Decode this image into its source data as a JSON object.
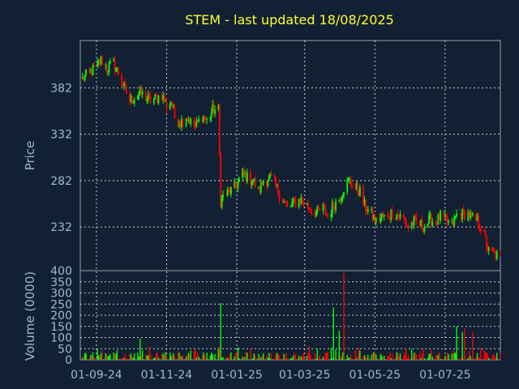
{
  "chart_data": [
    {
      "type": "candlestick",
      "title": "STEM - last updated 18/08/2025",
      "ylabel": "Price",
      "yticks": [
        "232",
        "282",
        "332",
        "382"
      ],
      "ytick_values": [
        232,
        282,
        332,
        382
      ],
      "ylim": [
        185,
        433
      ],
      "xticks": [
        "01-09-24",
        "01-11-24",
        "01-01-25",
        "01-03-25",
        "01-05-25",
        "01-07-25"
      ],
      "x_range": [
        "2024-08-18",
        "2025-08-18"
      ],
      "grid": true,
      "up_color": "#00ff00",
      "down_color": "#ff0000",
      "series": [
        {
          "values": [
            [
              "2024-08-20",
              392
            ],
            [
              "2024-08-26",
              398
            ],
            [
              "2024-09-02",
              405
            ],
            [
              "2024-09-05",
              412
            ],
            [
              "2024-09-10",
              403
            ],
            [
              "2024-09-16",
              408
            ],
            [
              "2024-09-20",
              398
            ],
            [
              "2024-09-25",
              382
            ],
            [
              "2024-09-30",
              368
            ],
            [
              "2024-10-04",
              372
            ],
            [
              "2024-10-08",
              377
            ],
            [
              "2024-10-14",
              372
            ],
            [
              "2024-10-18",
              368
            ],
            [
              "2024-10-23",
              370
            ],
            [
              "2024-10-28",
              375
            ],
            [
              "2024-11-01",
              362
            ],
            [
              "2024-11-05",
              368
            ],
            [
              "2024-11-08",
              350
            ],
            [
              "2024-11-13",
              345
            ],
            [
              "2024-11-18",
              352
            ],
            [
              "2024-11-22",
              345
            ],
            [
              "2024-11-26",
              340
            ],
            [
              "2024-12-02",
              352
            ],
            [
              "2024-12-06",
              346
            ],
            [
              "2024-12-11",
              358
            ],
            [
              "2024-12-16",
              358
            ],
            [
              "2024-12-18",
              260
            ],
            [
              "2024-12-20",
              265
            ],
            [
              "2024-12-26",
              270
            ],
            [
              "2024-12-31",
              275
            ],
            [
              "2025-01-06",
              290
            ],
            [
              "2025-01-10",
              285
            ],
            [
              "2025-01-15",
              282
            ],
            [
              "2025-01-20",
              270
            ],
            [
              "2025-01-24",
              282
            ],
            [
              "2025-01-30",
              285
            ],
            [
              "2025-02-04",
              275
            ],
            [
              "2025-02-10",
              262
            ],
            [
              "2025-02-14",
              252
            ],
            [
              "2025-02-20",
              258
            ],
            [
              "2025-02-25",
              262
            ],
            [
              "2025-03-03",
              255
            ],
            [
              "2025-03-07",
              250
            ],
            [
              "2025-03-12",
              248
            ],
            [
              "2025-03-17",
              252
            ],
            [
              "2025-03-21",
              243
            ],
            [
              "2025-03-26",
              256
            ],
            [
              "2025-03-31",
              262
            ],
            [
              "2025-04-04",
              275
            ],
            [
              "2025-04-09",
              282
            ],
            [
              "2025-04-14",
              275
            ],
            [
              "2025-04-18",
              270
            ],
            [
              "2025-04-22",
              255
            ],
            [
              "2025-04-28",
              245
            ],
            [
              "2025-05-02",
              238
            ],
            [
              "2025-05-07",
              243
            ],
            [
              "2025-05-12",
              242
            ],
            [
              "2025-05-16",
              248
            ],
            [
              "2025-05-21",
              245
            ],
            [
              "2025-05-26",
              240
            ],
            [
              "2025-05-30",
              232
            ],
            [
              "2025-06-04",
              238
            ],
            [
              "2025-06-09",
              235
            ],
            [
              "2025-06-13",
              233
            ],
            [
              "2025-06-18",
              240
            ],
            [
              "2025-06-23",
              238
            ],
            [
              "2025-06-27",
              243
            ],
            [
              "2025-07-02",
              238
            ],
            [
              "2025-07-07",
              233
            ],
            [
              "2025-07-11",
              245
            ],
            [
              "2025-07-16",
              246
            ],
            [
              "2025-07-21",
              246
            ],
            [
              "2025-07-25",
              240
            ],
            [
              "2025-07-30",
              238
            ],
            [
              "2025-08-04",
              222
            ],
            [
              "2025-08-08",
              205
            ],
            [
              "2025-08-12",
              203
            ],
            [
              "2025-08-18",
              199
            ]
          ]
        }
      ]
    },
    {
      "type": "bar",
      "ylabel": "Volume (0000)",
      "yticks": [
        "0",
        "50",
        "100",
        "150",
        "200",
        "250",
        "300",
        "350",
        "400"
      ],
      "ytick_values": [
        0,
        50,
        100,
        150,
        200,
        250,
        300,
        350,
        400
      ],
      "ylim": [
        0,
        400
      ],
      "spikes": [
        [
          "2024-12-18",
          255,
          "up"
        ],
        [
          "2025-03-26",
          235,
          "up"
        ],
        [
          "2025-04-04",
          390,
          "down"
        ],
        [
          "2025-03-31",
          130,
          "up"
        ],
        [
          "2025-07-11",
          150,
          "up"
        ],
        [
          "2025-07-18",
          140,
          "down"
        ],
        [
          "2025-07-16",
          125,
          "up"
        ],
        [
          "2025-07-25",
          125,
          "down"
        ],
        [
          "2024-10-09",
          95,
          "up"
        ]
      ]
    }
  ]
}
